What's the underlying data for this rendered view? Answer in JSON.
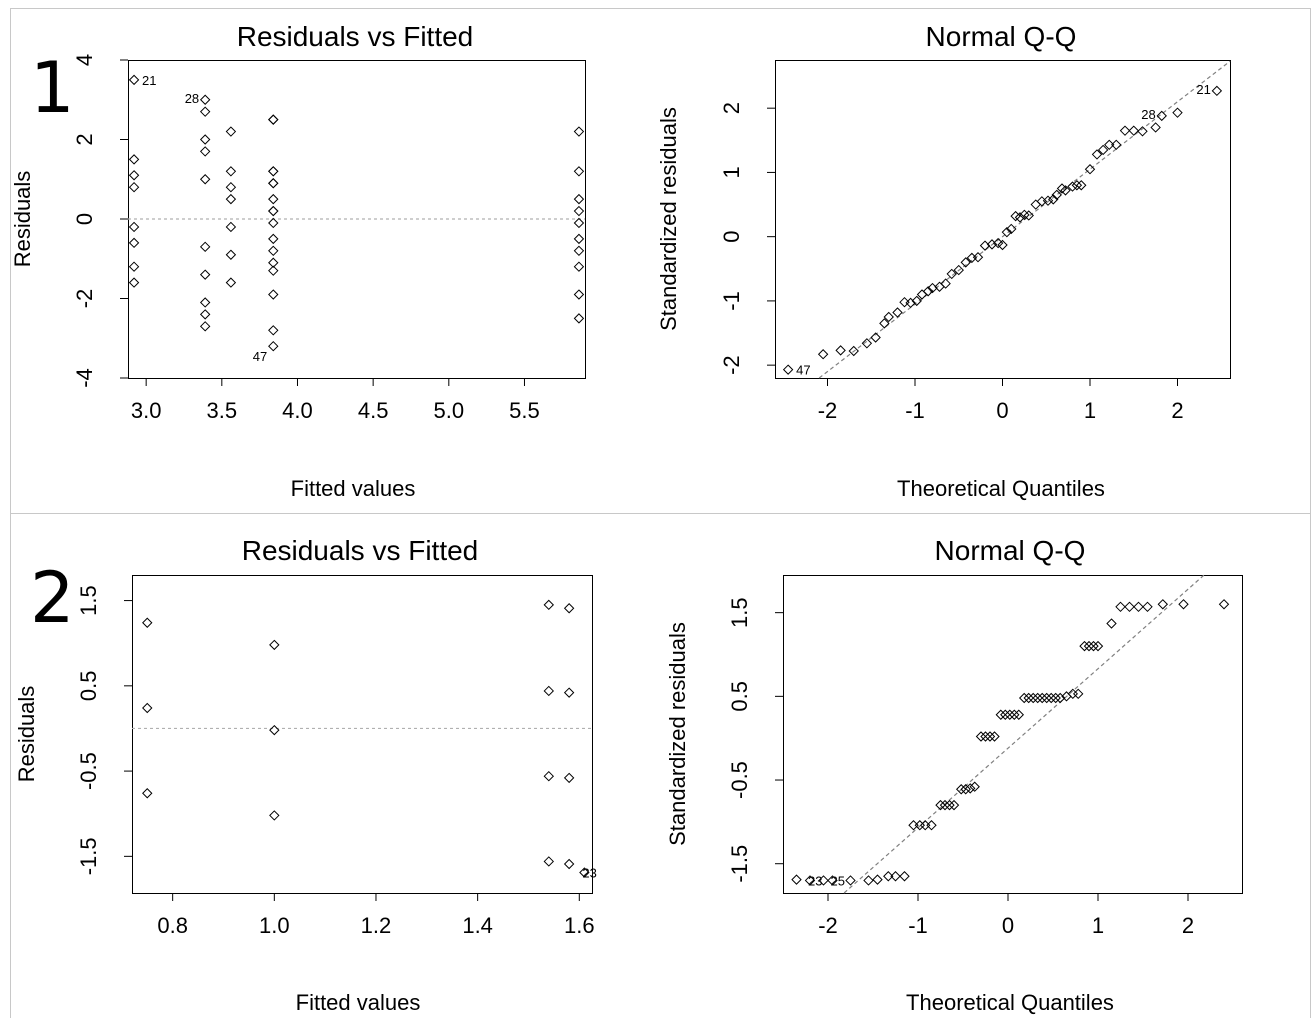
{
  "panel_labels": [
    "1",
    "2"
  ],
  "chart_data": [
    {
      "id": "p1-rvf",
      "type": "scatter",
      "title": "Residuals vs Fitted",
      "xlabel": "Fitted values",
      "ylabel": "Residuals",
      "xlim": [
        2.88,
        5.9
      ],
      "ylim": [
        -4,
        4
      ],
      "xticks": [
        3.0,
        3.5,
        4.0,
        4.5,
        5.0,
        5.5
      ],
      "xtick_labels": [
        "3.0",
        "3.5",
        "4.0",
        "4.5",
        "5.0",
        "5.5"
      ],
      "yticks": [
        -4,
        -2,
        0,
        2,
        4
      ],
      "ytick_labels": [
        "-4",
        "-2",
        "0",
        "2",
        "4"
      ],
      "hline": 0,
      "points": [
        [
          2.92,
          3.5
        ],
        [
          2.92,
          1.5
        ],
        [
          2.92,
          1.1
        ],
        [
          2.92,
          0.8
        ],
        [
          2.92,
          -0.2
        ],
        [
          2.92,
          -0.6
        ],
        [
          2.92,
          -1.2
        ],
        [
          2.92,
          -1.6
        ],
        [
          3.39,
          3.0
        ],
        [
          3.39,
          2.7
        ],
        [
          3.39,
          2.0
        ],
        [
          3.39,
          1.7
        ],
        [
          3.39,
          1.0
        ],
        [
          3.39,
          -0.7
        ],
        [
          3.39,
          -1.4
        ],
        [
          3.39,
          -2.1
        ],
        [
          3.39,
          -2.4
        ],
        [
          3.39,
          -2.7
        ],
        [
          3.56,
          2.2
        ],
        [
          3.56,
          1.2
        ],
        [
          3.56,
          0.8
        ],
        [
          3.56,
          0.5
        ],
        [
          3.56,
          -0.2
        ],
        [
          3.56,
          -0.9
        ],
        [
          3.56,
          -1.6
        ],
        [
          3.84,
          2.5
        ],
        [
          3.84,
          2.5
        ],
        [
          3.84,
          1.2
        ],
        [
          3.84,
          1.2
        ],
        [
          3.84,
          0.9
        ],
        [
          3.84,
          0.9
        ],
        [
          3.84,
          0.5
        ],
        [
          3.84,
          0.2
        ],
        [
          3.84,
          0.2
        ],
        [
          3.84,
          -0.1
        ],
        [
          3.84,
          -0.5
        ],
        [
          3.84,
          -0.8
        ],
        [
          3.84,
          -1.1
        ],
        [
          3.84,
          -1.3
        ],
        [
          3.84,
          -1.9
        ],
        [
          3.84,
          -2.8
        ],
        [
          3.84,
          -3.2
        ],
        [
          5.86,
          2.2
        ],
        [
          5.86,
          1.2
        ],
        [
          5.86,
          0.5
        ],
        [
          5.86,
          0.2
        ],
        [
          5.86,
          -0.1
        ],
        [
          5.86,
          -0.5
        ],
        [
          5.86,
          -0.8
        ],
        [
          5.86,
          -1.2
        ],
        [
          5.86,
          -1.9
        ],
        [
          5.86,
          -2.5
        ]
      ],
      "point_labels": [
        {
          "text": "21",
          "x": 2.92,
          "y": 3.5,
          "side": "right"
        },
        {
          "text": "28",
          "x": 3.39,
          "y": 3.0,
          "side": "left"
        },
        {
          "text": "47",
          "x": 3.84,
          "y": -3.2,
          "side": "left-below"
        }
      ]
    },
    {
      "id": "p1-qq",
      "type": "scatter",
      "title": "Normal Q-Q",
      "xlabel": "Theoretical Quantiles",
      "ylabel": "Standardized residuals",
      "xlim": [
        -2.6,
        2.6
      ],
      "ylim": [
        -2.2,
        2.75
      ],
      "xticks": [
        -2,
        -1,
        0,
        1,
        2
      ],
      "xtick_labels": [
        "-2",
        "-1",
        "0",
        "1",
        "2"
      ],
      "yticks": [
        -2,
        -1,
        0,
        1,
        2
      ],
      "ytick_labels": [
        "-2",
        "-1",
        "0",
        "1",
        "2"
      ],
      "ref_line": {
        "slope": 1.05,
        "intercept": 0.0
      },
      "points": [
        [
          -2.45,
          -2.07
        ],
        [
          -2.05,
          -1.83
        ],
        [
          -1.85,
          -1.77
        ],
        [
          -1.7,
          -1.78
        ],
        [
          -1.55,
          -1.66
        ],
        [
          -1.45,
          -1.57
        ],
        [
          -1.35,
          -1.35
        ],
        [
          -1.3,
          -1.25
        ],
        [
          -1.2,
          -1.18
        ],
        [
          -1.12,
          -1.02
        ],
        [
          -1.05,
          -1.03
        ],
        [
          -0.98,
          -1.0
        ],
        [
          -0.92,
          -0.9
        ],
        [
          -0.85,
          -0.85
        ],
        [
          -0.8,
          -0.8
        ],
        [
          -0.72,
          -0.78
        ],
        [
          -0.65,
          -0.73
        ],
        [
          -0.58,
          -0.58
        ],
        [
          -0.5,
          -0.52
        ],
        [
          -0.42,
          -0.4
        ],
        [
          -0.35,
          -0.33
        ],
        [
          -0.28,
          -0.32
        ],
        [
          -0.2,
          -0.14
        ],
        [
          -0.12,
          -0.12
        ],
        [
          -0.05,
          -0.1
        ],
        [
          0.0,
          -0.13
        ],
        [
          0.05,
          0.07
        ],
        [
          0.1,
          0.12
        ],
        [
          0.15,
          0.32
        ],
        [
          0.2,
          0.3
        ],
        [
          0.25,
          0.34
        ],
        [
          0.3,
          0.33
        ],
        [
          0.38,
          0.5
        ],
        [
          0.45,
          0.55
        ],
        [
          0.52,
          0.56
        ],
        [
          0.58,
          0.58
        ],
        [
          0.62,
          0.65
        ],
        [
          0.68,
          0.75
        ],
        [
          0.72,
          0.72
        ],
        [
          0.8,
          0.78
        ],
        [
          0.85,
          0.8
        ],
        [
          0.9,
          0.8
        ],
        [
          1.0,
          1.05
        ],
        [
          1.08,
          1.28
        ],
        [
          1.15,
          1.35
        ],
        [
          1.22,
          1.43
        ],
        [
          1.3,
          1.43
        ],
        [
          1.4,
          1.65
        ],
        [
          1.5,
          1.65
        ],
        [
          1.6,
          1.64
        ],
        [
          1.75,
          1.7
        ],
        [
          1.82,
          1.88
        ],
        [
          2.0,
          1.93
        ],
        [
          2.45,
          2.27
        ]
      ],
      "point_labels": [
        {
          "text": "47",
          "x": -2.45,
          "y": -2.07,
          "side": "right"
        },
        {
          "text": "28",
          "x": 1.82,
          "y": 1.88,
          "side": "left"
        },
        {
          "text": "21",
          "x": 2.45,
          "y": 2.27,
          "side": "left"
        }
      ]
    },
    {
      "id": "p2-rvf",
      "type": "scatter",
      "title": "Residuals vs Fitted",
      "xlabel": "Fitted values",
      "ylabel": "Residuals",
      "xlim": [
        0.72,
        1.625
      ],
      "ylim": [
        -1.93,
        1.8
      ],
      "xticks": [
        0.8,
        1.0,
        1.2,
        1.4,
        1.6
      ],
      "xtick_labels": [
        "0.8",
        "1.0",
        "1.2",
        "1.4",
        "1.6"
      ],
      "yticks": [
        -1.5,
        -0.5,
        0.5,
        1.5
      ],
      "ytick_labels": [
        "-1.5",
        "-0.5",
        "0.5",
        "1.5"
      ],
      "hline": 0,
      "points": [
        [
          0.75,
          1.24
        ],
        [
          0.75,
          0.24
        ],
        [
          0.75,
          -0.76
        ],
        [
          1.0,
          0.98
        ],
        [
          1.0,
          -0.02
        ],
        [
          1.0,
          -1.02
        ],
        [
          1.54,
          1.45
        ],
        [
          1.54,
          0.44
        ],
        [
          1.54,
          -0.56
        ],
        [
          1.54,
          -1.56
        ],
        [
          1.58,
          1.41
        ],
        [
          1.58,
          0.42
        ],
        [
          1.58,
          -0.58
        ],
        [
          1.58,
          -1.59
        ],
        [
          1.61,
          -1.69
        ]
      ],
      "point_labels": [
        {
          "text": "23",
          "x": 1.61,
          "y": -1.69,
          "side": "right-on"
        }
      ]
    },
    {
      "id": "p2-qq",
      "type": "scatter",
      "title": "Normal Q-Q",
      "xlabel": "Theoretical Quantiles",
      "ylabel": "Standardized residuals",
      "xlim": [
        -2.5,
        2.6
      ],
      "ylim": [
        -1.85,
        1.95
      ],
      "xticks": [
        -2,
        -1,
        0,
        1,
        2
      ],
      "xtick_labels": [
        "-2",
        "-1",
        "0",
        "1",
        "2"
      ],
      "yticks": [
        -1.5,
        -0.5,
        0.5,
        1.5
      ],
      "ytick_labels": [
        "-1.5",
        "-0.5",
        "0.5",
        "1.5"
      ],
      "ref_line": {
        "slope": 0.95,
        "intercept": -0.12
      },
      "points": [
        [
          -2.35,
          -1.69
        ],
        [
          -2.2,
          -1.7
        ],
        [
          -2.05,
          -1.7
        ],
        [
          -1.95,
          -1.7
        ],
        [
          -1.75,
          -1.7
        ],
        [
          -1.55,
          -1.7
        ],
        [
          -1.45,
          -1.69
        ],
        [
          -1.33,
          -1.65
        ],
        [
          -1.25,
          -1.65
        ],
        [
          -1.15,
          -1.65
        ],
        [
          -1.05,
          -1.04
        ],
        [
          -0.98,
          -1.04
        ],
        [
          -0.92,
          -1.04
        ],
        [
          -0.85,
          -1.04
        ],
        [
          -0.75,
          -0.8
        ],
        [
          -0.7,
          -0.8
        ],
        [
          -0.65,
          -0.8
        ],
        [
          -0.6,
          -0.8
        ],
        [
          -0.52,
          -0.61
        ],
        [
          -0.47,
          -0.61
        ],
        [
          -0.42,
          -0.6
        ],
        [
          -0.37,
          -0.58
        ],
        [
          -0.3,
          0.02
        ],
        [
          -0.25,
          0.02
        ],
        [
          -0.2,
          0.02
        ],
        [
          -0.15,
          0.02
        ],
        [
          -0.08,
          0.28
        ],
        [
          -0.03,
          0.28
        ],
        [
          0.02,
          0.28
        ],
        [
          0.07,
          0.28
        ],
        [
          0.12,
          0.28
        ],
        [
          0.18,
          0.48
        ],
        [
          0.23,
          0.48
        ],
        [
          0.28,
          0.48
        ],
        [
          0.33,
          0.48
        ],
        [
          0.38,
          0.48
        ],
        [
          0.43,
          0.48
        ],
        [
          0.48,
          0.48
        ],
        [
          0.53,
          0.48
        ],
        [
          0.58,
          0.48
        ],
        [
          0.65,
          0.5
        ],
        [
          0.72,
          0.53
        ],
        [
          0.78,
          0.53
        ],
        [
          0.85,
          1.1
        ],
        [
          0.9,
          1.1
        ],
        [
          0.95,
          1.1
        ],
        [
          1.0,
          1.1
        ],
        [
          1.15,
          1.37
        ],
        [
          1.25,
          1.57
        ],
        [
          1.35,
          1.57
        ],
        [
          1.45,
          1.57
        ],
        [
          1.55,
          1.57
        ],
        [
          1.72,
          1.6
        ],
        [
          1.95,
          1.6
        ],
        [
          2.4,
          1.6
        ]
      ],
      "point_labels": [
        {
          "text": "23",
          "x": -2.2,
          "y": -1.7,
          "side": "right-on"
        },
        {
          "text": "25",
          "x": -1.95,
          "y": -1.7,
          "side": "right-on"
        }
      ]
    }
  ]
}
